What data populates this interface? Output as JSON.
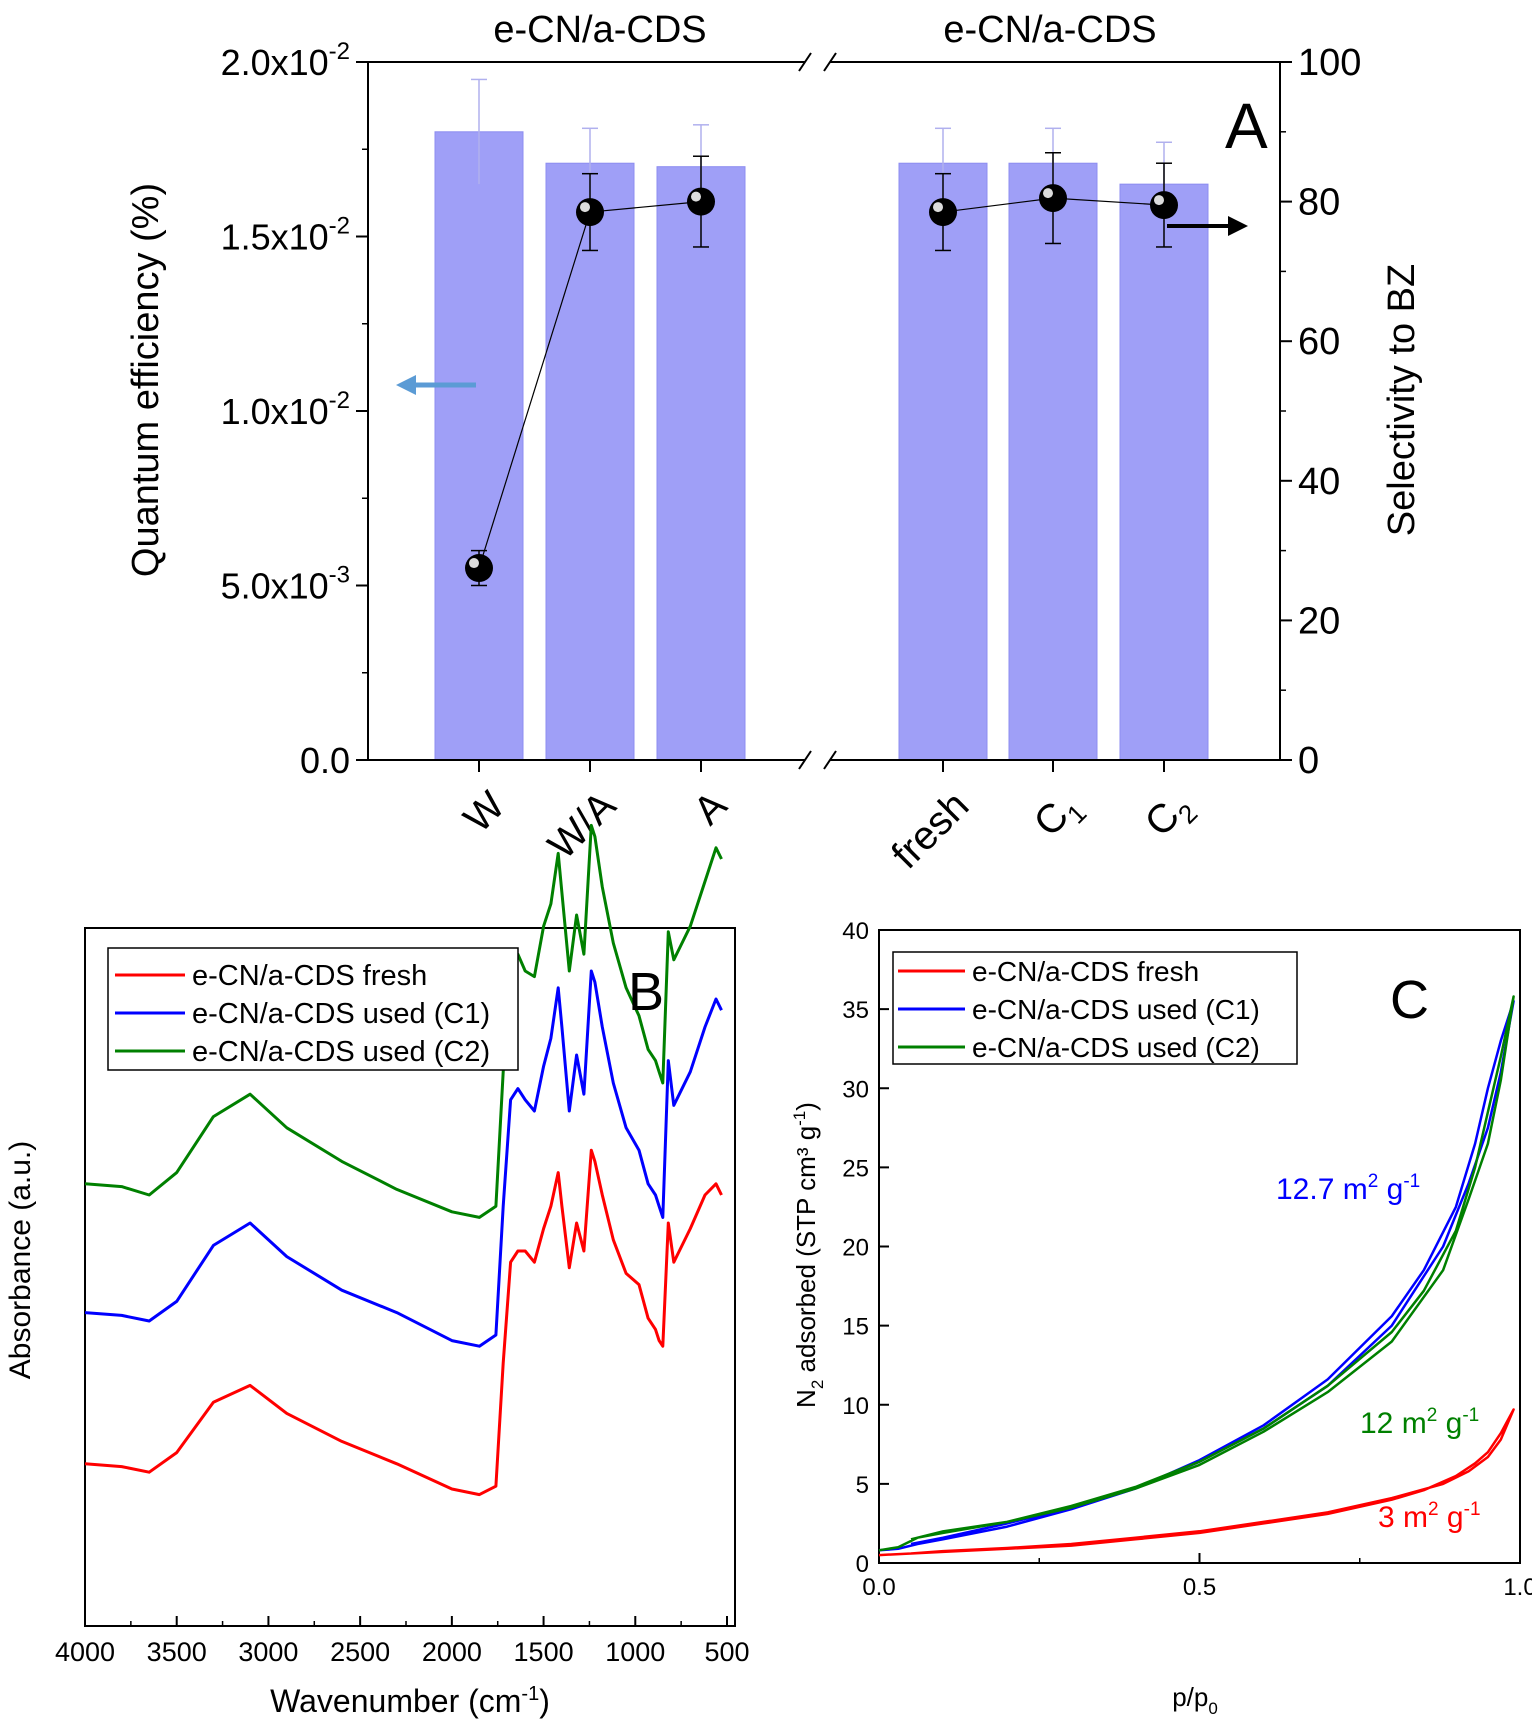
{
  "chart_data": [
    {
      "id": "A",
      "type": "bar",
      "panel_label": "A",
      "group_titles": [
        "e-CN/a-CDS",
        "e-CN/a-CDS"
      ],
      "categories": [
        "W",
        "W/A",
        "A",
        "fresh",
        "C1",
        "C2"
      ],
      "category_labels": [
        {
          "main": "W",
          "sub": ""
        },
        {
          "main": "W/A",
          "sub": ""
        },
        {
          "main": "A",
          "sub": ""
        },
        {
          "main": "fresh",
          "sub": ""
        },
        {
          "main": "C",
          "sub": "1"
        },
        {
          "main": "C",
          "sub": "2"
        }
      ],
      "axis_break": true,
      "ylabel": "Quantum efficiency (%)",
      "ylabel2": "Selectivity to BZ",
      "ylim": [
        0,
        0.02
      ],
      "ylim2": [
        0,
        100
      ],
      "yticks": [
        {
          "value": 0,
          "mant": "0.0",
          "exp": ""
        },
        {
          "value": 0.005,
          "mant": "5.0x10",
          "exp": "-3"
        },
        {
          "value": 0.01,
          "mant": "1.0x10",
          "exp": "-2"
        },
        {
          "value": 0.015,
          "mant": "1.5x10",
          "exp": "-2"
        },
        {
          "value": 0.02,
          "mant": "2.0x10",
          "exp": "-2"
        }
      ],
      "yticks2": [
        "0",
        "20",
        "40",
        "60",
        "80",
        "100"
      ],
      "bar_color": "#9f9ff7",
      "series": [
        {
          "axis": "left",
          "kind": "bar",
          "values": [
            0.018,
            0.0171,
            0.017,
            0.0171,
            0.0171,
            0.0165
          ],
          "errors": [
            0.0015,
            0.001,
            0.0012,
            0.001,
            0.001,
            0.0012
          ]
        },
        {
          "axis": "right",
          "kind": "line-marker",
          "values": [
            27.5,
            78.5,
            80,
            78.5,
            80.5,
            79.5
          ],
          "errors": [
            2.5,
            5.5,
            6.5,
            5.5,
            6.5,
            6.0
          ]
        }
      ]
    },
    {
      "id": "B",
      "type": "line",
      "panel_label": "B",
      "xlabel": "Wavenumber (cm",
      "xlabel_sup": "-1",
      "xlabel_end": ")",
      "ylabel": "Absorbance (a.u.)",
      "xlim": [
        4000,
        500
      ],
      "xticks": [
        "4000",
        "3500",
        "3000",
        "2500",
        "2000",
        "1500",
        "1000",
        "500"
      ],
      "yticks": [],
      "legend_position": "top-left",
      "series": [
        {
          "name": "e-CN/a-CDS fresh",
          "color": "#ff0000",
          "x": [
            4000,
            3800,
            3650,
            3500,
            3300,
            3100,
            2900,
            2600,
            2300,
            2000,
            1850,
            1760,
            1720,
            1680,
            1640,
            1600,
            1550,
            1500,
            1460,
            1420,
            1400,
            1360,
            1320,
            1280,
            1240,
            1220,
            1180,
            1120,
            1050,
            980,
            930,
            890,
            870,
            850,
            820,
            790,
            760,
            700,
            620,
            560,
            530
          ],
          "y": [
            0.12,
            0.115,
            0.105,
            0.14,
            0.23,
            0.26,
            0.21,
            0.16,
            0.12,
            0.075,
            0.065,
            0.08,
            0.3,
            0.48,
            0.5,
            0.5,
            0.48,
            0.54,
            0.58,
            0.64,
            0.58,
            0.47,
            0.55,
            0.5,
            0.68,
            0.66,
            0.6,
            0.52,
            0.46,
            0.44,
            0.38,
            0.36,
            0.34,
            0.33,
            0.55,
            0.48,
            0.5,
            0.54,
            0.6,
            0.62,
            0.6
          ]
        },
        {
          "name": "e-CN/a-CDS used (C1)",
          "color": "#0000ff",
          "x": [
            4000,
            3800,
            3650,
            3500,
            3300,
            3100,
            2900,
            2600,
            2300,
            2000,
            1850,
            1760,
            1720,
            1680,
            1640,
            1600,
            1550,
            1500,
            1460,
            1420,
            1400,
            1360,
            1320,
            1280,
            1240,
            1220,
            1180,
            1120,
            1050,
            980,
            930,
            890,
            870,
            850,
            820,
            790,
            760,
            700,
            620,
            560,
            530
          ],
          "y": [
            0.39,
            0.385,
            0.375,
            0.41,
            0.51,
            0.55,
            0.49,
            0.43,
            0.39,
            0.34,
            0.33,
            0.35,
            0.58,
            0.77,
            0.79,
            0.77,
            0.75,
            0.83,
            0.88,
            0.97,
            0.9,
            0.75,
            0.85,
            0.78,
            1.0,
            0.98,
            0.9,
            0.8,
            0.72,
            0.68,
            0.62,
            0.6,
            0.58,
            0.56,
            0.84,
            0.76,
            0.78,
            0.82,
            0.9,
            0.95,
            0.93
          ]
        },
        {
          "name": "e-CN/a-CDS used (C2)",
          "color": "#008000",
          "x": [
            4000,
            3800,
            3650,
            3500,
            3300,
            3100,
            2900,
            2600,
            2300,
            2000,
            1850,
            1760,
            1720,
            1680,
            1640,
            1600,
            1550,
            1500,
            1460,
            1420,
            1400,
            1360,
            1320,
            1280,
            1240,
            1220,
            1180,
            1120,
            1050,
            980,
            930,
            890,
            870,
            850,
            820,
            790,
            760,
            700,
            620,
            560,
            530
          ],
          "y": [
            0.62,
            0.615,
            0.6,
            0.64,
            0.74,
            0.78,
            0.72,
            0.66,
            0.61,
            0.57,
            0.56,
            0.58,
            0.82,
            1.01,
            1.03,
            1.0,
            0.99,
            1.08,
            1.12,
            1.21,
            1.14,
            1.0,
            1.1,
            1.03,
            1.26,
            1.24,
            1.15,
            1.05,
            0.97,
            0.92,
            0.86,
            0.84,
            0.82,
            0.8,
            1.07,
            1.02,
            1.04,
            1.08,
            1.16,
            1.22,
            1.2
          ]
        }
      ]
    },
    {
      "id": "C",
      "type": "line",
      "panel_label": "C",
      "xlabel": "p/p",
      "xlabel_sub": "0",
      "ylabel_parts": [
        {
          "t": "N"
        },
        {
          "t": "2",
          "sub": true
        },
        {
          "t": " adsorbed (STP cm³ g"
        },
        {
          "t": "-1",
          "sup": true
        },
        {
          "t": ")"
        }
      ],
      "xlim": [
        0,
        1
      ],
      "ylim": [
        0,
        40
      ],
      "xticks": [
        "0.0",
        "0.5",
        "1.0"
      ],
      "yticks": [
        "0",
        "5",
        "10",
        "15",
        "20",
        "25",
        "30",
        "35",
        "40"
      ],
      "legend_position": "top-left",
      "annotations": [
        {
          "text": "12.7 m",
          "sup": "2",
          "end": " g",
          "sup2": "-1",
          "color": "#0000ff"
        },
        {
          "text": "12 m",
          "sup": "2",
          "end": " g",
          "sup2": "-1",
          "color": "#008000"
        },
        {
          "text": "3 m",
          "sup": "2",
          "end": " g",
          "sup2": "-1",
          "color": "#ff0000"
        }
      ],
      "series": [
        {
          "name": "e-CN/a-CDS fresh",
          "color": "#ff0000",
          "x": [
            0.0,
            0.05,
            0.1,
            0.2,
            0.3,
            0.4,
            0.5,
            0.6,
            0.7,
            0.8,
            0.85,
            0.9,
            0.93,
            0.95,
            0.97,
            0.99,
            0.97,
            0.95,
            0.92,
            0.88,
            0.8,
            0.7,
            0.6,
            0.5,
            0.4,
            0.3,
            0.2,
            0.1,
            0.05
          ],
          "y": [
            0.5,
            0.6,
            0.7,
            0.9,
            1.1,
            1.5,
            1.9,
            2.5,
            3.1,
            4.0,
            4.6,
            5.5,
            6.3,
            7.0,
            8.2,
            9.7,
            7.8,
            6.7,
            5.8,
            5.0,
            4.1,
            3.2,
            2.6,
            2.0,
            1.6,
            1.2,
            0.95,
            0.75,
            0.6
          ]
        },
        {
          "name": "e-CN/a-CDS used (C1)",
          "color": "#0000ff",
          "x": [
            0.0,
            0.03,
            0.06,
            0.1,
            0.2,
            0.3,
            0.4,
            0.5,
            0.6,
            0.7,
            0.8,
            0.85,
            0.9,
            0.93,
            0.95,
            0.97,
            0.99,
            0.97,
            0.95,
            0.92,
            0.88,
            0.8,
            0.7,
            0.6,
            0.5,
            0.4,
            0.3,
            0.2,
            0.1,
            0.05
          ],
          "y": [
            0.8,
            0.9,
            1.2,
            1.5,
            2.3,
            3.4,
            4.7,
            6.5,
            8.7,
            11.6,
            15.6,
            18.5,
            22.5,
            26.5,
            30.0,
            33.0,
            35.5,
            31.0,
            27.5,
            24.0,
            20.0,
            15.0,
            11.2,
            8.5,
            6.4,
            4.7,
            3.5,
            2.5,
            1.6,
            1.2
          ]
        },
        {
          "name": "e-CN/a-CDS used (C2)",
          "color": "#008000",
          "x": [
            0.0,
            0.03,
            0.06,
            0.1,
            0.2,
            0.3,
            0.4,
            0.5,
            0.6,
            0.7,
            0.8,
            0.85,
            0.9,
            0.93,
            0.95,
            0.97,
            0.99,
            0.97,
            0.95,
            0.92,
            0.88,
            0.8,
            0.7,
            0.6,
            0.5,
            0.4,
            0.3,
            0.2,
            0.1,
            0.05
          ],
          "y": [
            0.8,
            1.0,
            1.6,
            1.9,
            2.6,
            3.6,
            4.8,
            6.4,
            8.5,
            11.2,
            14.6,
            17.2,
            21.0,
            25.0,
            28.5,
            32.0,
            35.8,
            30.5,
            26.5,
            23.0,
            18.5,
            14.0,
            10.8,
            8.3,
            6.2,
            4.7,
            3.5,
            2.6,
            2.0,
            1.5
          ]
        }
      ]
    }
  ]
}
